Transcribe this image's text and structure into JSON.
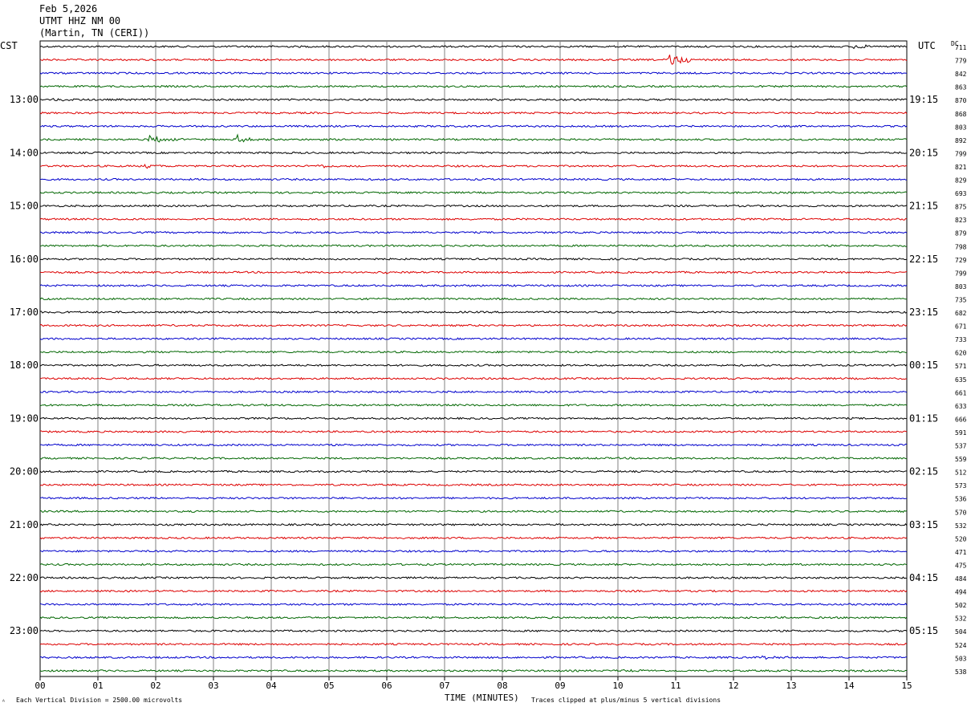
{
  "header": {
    "date": "Feb 5,2026",
    "station": "UTMT HHZ NM 00",
    "location": "(Martin, TN (CERI))"
  },
  "left_tz": "CST",
  "right_tz": "UTC",
  "dc_label": "DC",
  "footer": {
    "scale": "Each Vertical Division = 2500.00 microvolts",
    "clip": "Traces clipped at plus/minus 5 vertical divisions",
    "corner_mark": "ᴬ"
  },
  "colors": {
    "trace_cycle": [
      "#000000",
      "#dd0000",
      "#0000cc",
      "#006600"
    ],
    "grid": "#808080"
  },
  "chart_data": {
    "type": "line",
    "title": "",
    "xlabel": "TIME (MINUTES)",
    "x_ticks": [
      "00",
      "01",
      "02",
      "03",
      "04",
      "05",
      "06",
      "07",
      "08",
      "09",
      "10",
      "11",
      "12",
      "13",
      "14",
      "15"
    ],
    "xlim": [
      0,
      15
    ],
    "rows": 48,
    "minutes_per_row": 15,
    "left_hour_labels": [
      "13:00",
      "14:00",
      "15:00",
      "16:00",
      "17:00",
      "18:00",
      "19:00",
      "20:00",
      "21:00",
      "22:00",
      "23:00"
    ],
    "right_hour_labels": [
      "19:15",
      "20:15",
      "21:15",
      "22:15",
      "23:15",
      "00:15",
      "01:15",
      "02:15",
      "03:15",
      "04:15",
      "05:15"
    ],
    "first_labeled_row": 4,
    "dc_offsets": [
      711,
      779,
      842,
      863,
      870,
      868,
      803,
      892,
      799,
      821,
      829,
      693,
      875,
      823,
      879,
      798,
      729,
      799,
      803,
      735,
      682,
      671,
      733,
      620,
      571,
      635,
      661,
      633,
      666,
      591,
      537,
      559,
      512,
      573,
      536,
      570,
      532,
      520,
      471,
      475,
      484,
      494,
      502,
      532,
      504,
      524,
      503,
      538
    ],
    "events": [
      {
        "row": 1,
        "minute": 10.9,
        "amplitude": 11
      },
      {
        "row": 7,
        "minute": 1.9,
        "amplitude": 6
      },
      {
        "row": 7,
        "minute": 3.4,
        "amplitude": 6
      },
      {
        "row": 9,
        "minute": 1.8,
        "amplitude": 3
      },
      {
        "row": 9,
        "minute": 4.8,
        "amplitude": 2.5
      },
      {
        "row": 4,
        "minute": 0.25,
        "amplitude": 2.5
      },
      {
        "row": 0,
        "minute": 14.05,
        "amplitude": 3
      },
      {
        "row": 17,
        "minute": 5.9,
        "amplitude": 2.5
      },
      {
        "row": 18,
        "minute": 7.0,
        "amplitude": 2
      },
      {
        "row": 46,
        "minute": 12.5,
        "amplitude": 2
      },
      {
        "row": 47,
        "minute": 10.1,
        "amplitude": 2.5
      }
    ]
  }
}
